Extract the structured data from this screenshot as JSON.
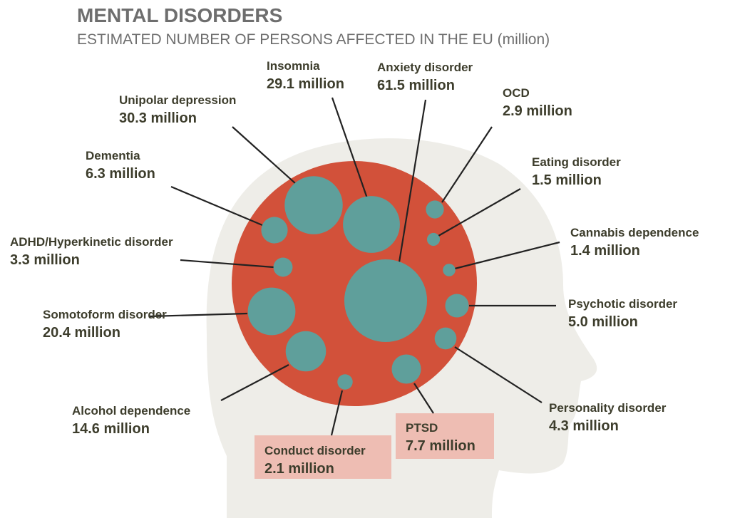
{
  "chart_data": {
    "type": "bubble",
    "title": "MENTAL DISORDERS",
    "subtitle": "ESTIMATED NUMBER OF PERSONS AFFECTED IN THE EU (million)",
    "categories": [
      "Insomnia",
      "Anxiety disorder",
      "Unipolar depression",
      "OCD",
      "Eating disorder",
      "Dementia",
      "ADHD/Hyperkinetic disorder",
      "Cannabis dependence",
      "Somotoform disorder",
      "Psychotic disorder",
      "Personality disorder",
      "Alcohol dependence",
      "Conduct disorder",
      "PTSD"
    ],
    "values": [
      29.1,
      61.5,
      30.3,
      2.9,
      1.5,
      6.3,
      3.3,
      1.4,
      20.4,
      5.0,
      4.3,
      14.6,
      2.1,
      7.7
    ],
    "value_labels": [
      "29.1 million",
      "61.5 million",
      "30.3 million",
      "2.9 million",
      "1.5 million",
      "6.3 million",
      "3.3 million",
      "1.4 million",
      "20.4 million",
      "5.0 million",
      "4.3 million",
      "14.6 million",
      "2.1 million",
      "7.7 million"
    ],
    "color": "#5f9f9b",
    "background_color": "#d2513a"
  }
}
